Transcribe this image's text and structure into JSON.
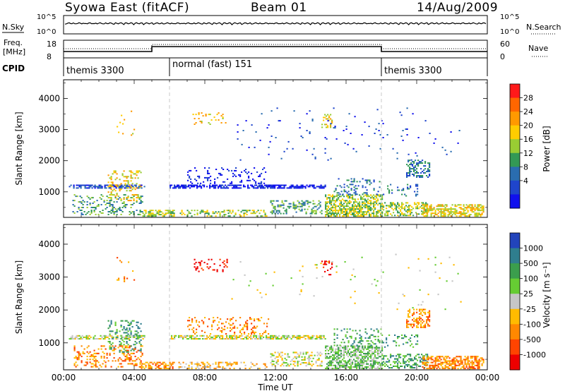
{
  "header": {
    "station": "Syowa East (fitACF)",
    "beam": "Beam 01",
    "date": "14/Aug/2009"
  },
  "noise_panel": {
    "left_label": "N.Sky",
    "left_ticks": [
      "10^5",
      "10^0"
    ],
    "right_label": "N.Search",
    "right_ticks": [
      "10^5",
      "10^0"
    ]
  },
  "freq_panel": {
    "left_label": [
      "Freq.",
      "[MHz]"
    ],
    "left_ticks": [
      "18",
      "8"
    ],
    "right_label": "Nave",
    "right_ticks": [
      "60",
      "0"
    ]
  },
  "cpid": {
    "label": "CPID",
    "segments": [
      {
        "start_hour": 0,
        "end_hour": 6,
        "name": "themis 3300"
      },
      {
        "start_hour": 6,
        "end_hour": 18,
        "name": "normal (fast) 151"
      },
      {
        "start_hour": 18,
        "end_hour": 24,
        "name": "themis 3300"
      }
    ]
  },
  "power_colorbar": {
    "title": "Power [dB]",
    "ticks": [
      "28",
      "24",
      "20",
      "16",
      "12",
      "8",
      "4"
    ],
    "colors": [
      "#ff1a1a",
      "#ff6600",
      "#ff9900",
      "#ffcc00",
      "#99cc33",
      "#339955",
      "#2a6db0",
      "#1f45cc",
      "#1010ee"
    ]
  },
  "velocity_colorbar": {
    "title": "Velocity [m s⁻¹]",
    "ticks": [
      "1000",
      "500",
      "100",
      "25",
      "-25",
      "-100",
      "-500",
      "-1000"
    ],
    "colors": [
      "#2244bb",
      "#2f7e8e",
      "#3b9e4d",
      "#66cc33",
      "#c6c6c6",
      "#ffbb00",
      "#ff8800",
      "#ff4400",
      "#ee0000"
    ]
  },
  "chart_data": [
    {
      "type": "heatmap",
      "title": "",
      "xlabel": "Time UT",
      "ylabel": "Slant Range [km]",
      "x_ticks": [
        "00:00",
        "04:00",
        "08:00",
        "12:00",
        "16:00",
        "20:00",
        "00:00"
      ],
      "xlim_hours": [
        0,
        24
      ],
      "y_ticks": [
        1000,
        2000,
        3000,
        4000
      ],
      "ylim": [
        180,
        4600
      ],
      "colorbar_label": "Power [dB]",
      "blobs": [
        {
          "t0": 0.3,
          "t1": 4.6,
          "r0": 1100,
          "r1": 1220,
          "density": 0.65,
          "c": 1
        },
        {
          "t0": 0.5,
          "t1": 4.5,
          "r0": 250,
          "r1": 900,
          "density": 0.22,
          "c": 3
        },
        {
          "t0": 2.5,
          "t1": 4.4,
          "r0": 700,
          "r1": 1650,
          "density": 0.22,
          "c": 5
        },
        {
          "t0": 4.3,
          "t1": 6.3,
          "r0": 200,
          "r1": 420,
          "density": 0.55,
          "c": 4
        },
        {
          "t0": 6.5,
          "t1": 11.5,
          "r0": 200,
          "r1": 420,
          "density": 0.35,
          "c": 4
        },
        {
          "t0": 6.0,
          "t1": 12.3,
          "r0": 1100,
          "r1": 1220,
          "density": 0.7,
          "c": 0
        },
        {
          "t0": 7.0,
          "t1": 11.6,
          "r0": 1250,
          "r1": 1750,
          "density": 0.14,
          "c": 0
        },
        {
          "t0": 12.3,
          "t1": 14.8,
          "r0": 1100,
          "r1": 1220,
          "density": 0.6,
          "c": 0
        },
        {
          "t0": 11.7,
          "t1": 14.6,
          "r0": 280,
          "r1": 700,
          "density": 0.3,
          "c": 3
        },
        {
          "t0": 14.8,
          "t1": 18.0,
          "r0": 200,
          "r1": 900,
          "density": 0.6,
          "c": 4
        },
        {
          "t0": 15.3,
          "t1": 18.0,
          "r0": 900,
          "r1": 1400,
          "density": 0.2,
          "c": 2
        },
        {
          "t0": 18.0,
          "t1": 20.6,
          "r0": 220,
          "r1": 650,
          "density": 0.38,
          "c": 4
        },
        {
          "t0": 18.0,
          "t1": 20.0,
          "r0": 850,
          "r1": 1250,
          "density": 0.15,
          "c": 2
        },
        {
          "t0": 20.3,
          "t1": 23.8,
          "r0": 200,
          "r1": 600,
          "density": 0.55,
          "c": 5
        },
        {
          "t0": 19.4,
          "t1": 20.7,
          "r0": 1450,
          "r1": 2000,
          "density": 0.45,
          "c": 2
        },
        {
          "t0": 7.3,
          "t1": 9.3,
          "r0": 3150,
          "r1": 3520,
          "density": 0.2,
          "c": 5
        },
        {
          "t0": 14.6,
          "t1": 15.2,
          "r0": 3050,
          "r1": 3500,
          "density": 0.25,
          "c": 5
        },
        {
          "t0": 3.0,
          "t1": 4.0,
          "r0": 2800,
          "r1": 3600,
          "density": 0.05,
          "c": 5
        },
        {
          "t0": 9.5,
          "t1": 22.5,
          "r0": 2000,
          "r1": 3700,
          "density": 0.015,
          "c": 1
        }
      ]
    },
    {
      "type": "heatmap",
      "title": "",
      "xlabel": "Time UT",
      "ylabel": "Slant Range [km]",
      "x_ticks": [
        "00:00",
        "04:00",
        "08:00",
        "12:00",
        "16:00",
        "20:00",
        "00:00"
      ],
      "xlim_hours": [
        0,
        24
      ],
      "y_ticks": [
        1000,
        2000,
        3000,
        4000
      ],
      "ylim": [
        180,
        4600
      ],
      "colorbar_label": "Velocity [m s⁻¹]",
      "blobs": [
        {
          "t0": 0.3,
          "t1": 4.6,
          "r0": 1100,
          "r1": 1220,
          "density": 0.65,
          "c": 4
        },
        {
          "t0": 0.5,
          "t1": 4.5,
          "r0": 250,
          "r1": 900,
          "density": 0.25,
          "c": 6
        },
        {
          "t0": 2.5,
          "t1": 4.4,
          "r0": 700,
          "r1": 1650,
          "density": 0.22,
          "c": 2
        },
        {
          "t0": 4.3,
          "t1": 6.3,
          "r0": 200,
          "r1": 420,
          "density": 0.55,
          "c": 6
        },
        {
          "t0": 6.5,
          "t1": 11.5,
          "r0": 200,
          "r1": 420,
          "density": 0.35,
          "c": 5
        },
        {
          "t0": 6.0,
          "t1": 12.3,
          "r0": 1100,
          "r1": 1220,
          "density": 0.7,
          "c": 4
        },
        {
          "t0": 7.0,
          "t1": 11.6,
          "r0": 1250,
          "r1": 1750,
          "density": 0.18,
          "c": 6
        },
        {
          "t0": 12.3,
          "t1": 14.8,
          "r0": 1100,
          "r1": 1220,
          "density": 0.6,
          "c": 4
        },
        {
          "t0": 11.7,
          "t1": 14.6,
          "r0": 280,
          "r1": 700,
          "density": 0.35,
          "c": 4
        },
        {
          "t0": 14.8,
          "t1": 18.0,
          "r0": 200,
          "r1": 900,
          "density": 0.6,
          "c": 3
        },
        {
          "t0": 15.3,
          "t1": 18.0,
          "r0": 900,
          "r1": 1400,
          "density": 0.2,
          "c": 2
        },
        {
          "t0": 18.0,
          "t1": 20.6,
          "r0": 220,
          "r1": 650,
          "density": 0.38,
          "c": 2
        },
        {
          "t0": 18.0,
          "t1": 20.0,
          "r0": 850,
          "r1": 1250,
          "density": 0.15,
          "c": 2
        },
        {
          "t0": 20.3,
          "t1": 23.8,
          "r0": 200,
          "r1": 600,
          "density": 0.55,
          "c": 6
        },
        {
          "t0": 19.4,
          "t1": 20.7,
          "r0": 1450,
          "r1": 2000,
          "density": 0.45,
          "c": 6
        },
        {
          "t0": 7.3,
          "t1": 9.3,
          "r0": 3150,
          "r1": 3520,
          "density": 0.2,
          "c": 8
        },
        {
          "t0": 14.6,
          "t1": 15.2,
          "r0": 3050,
          "r1": 3500,
          "density": 0.25,
          "c": 8
        },
        {
          "t0": 3.0,
          "t1": 4.0,
          "r0": 2800,
          "r1": 3600,
          "density": 0.05,
          "c": 6
        },
        {
          "t0": 9.5,
          "t1": 22.5,
          "r0": 2000,
          "r1": 3700,
          "density": 0.015,
          "c": 4
        }
      ]
    }
  ]
}
